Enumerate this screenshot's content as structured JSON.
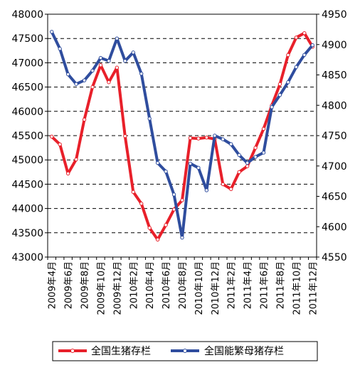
{
  "chart_data": {
    "type": "line",
    "categories": [
      "2009年4月",
      "2009年5月",
      "2009年6月",
      "2009年7月",
      "2009年8月",
      "2009年9月",
      "2009年10月",
      "2009年11月",
      "2009年12月",
      "2010年1月",
      "2010年2月",
      "2010年3月",
      "2010年4月",
      "2010年5月",
      "2010年6月",
      "2010年7月",
      "2010年8月",
      "2010年9月",
      "2010年10月",
      "2010年11月",
      "2010年12月",
      "2011年1月",
      "2011年2月",
      "2011年3月",
      "2011年4月",
      "2011年5月",
      "2011年6月",
      "2011年7月",
      "2011年8月",
      "2011年9月",
      "2011年10月",
      "2011年11月",
      "2011年12月"
    ],
    "x_tick_labels": [
      "2009年4月",
      "2009年6月",
      "2009年8月",
      "2009年10月",
      "2009年12月",
      "2010年2月",
      "2010年4月",
      "2010年6月",
      "2010年8月",
      "2010年10月",
      "2010年12月",
      "2011年2月",
      "2011年4月",
      "2011年6月",
      "2011年8月",
      "2011年10月",
      "2011年12月"
    ],
    "y_left": {
      "min": 43000,
      "max": 48000,
      "step": 500
    },
    "y_right": {
      "min": 4550,
      "max": 4950,
      "step": 50
    },
    "grid": "horizontal-dashed",
    "legend_position": "bottom",
    "series": [
      {
        "name": "全国生猪存栏",
        "axis": "left",
        "color": "#e8202a",
        "values": [
          45480,
          45320,
          44720,
          45010,
          45830,
          46500,
          46950,
          46600,
          46900,
          45490,
          44340,
          44100,
          43600,
          43360,
          43660,
          43980,
          44170,
          45450,
          45440,
          45460,
          45430,
          44500,
          44400,
          44750,
          44870,
          45250,
          45640,
          46120,
          46560,
          47160,
          47520,
          47610,
          47330
        ]
      },
      {
        "name": "全国能繁母猪存栏",
        "axis": "right",
        "color": "#2f4d9e",
        "values": [
          4921,
          4893,
          4851,
          4835,
          4841,
          4857,
          4878,
          4873,
          4910,
          4873,
          4887,
          4852,
          4778,
          4705,
          4691,
          4653,
          4582,
          4704,
          4697,
          4660,
          4750,
          4744,
          4736,
          4718,
          4705,
          4715,
          4722,
          4797,
          4817,
          4838,
          4863,
          4883,
          4899
        ]
      }
    ]
  }
}
